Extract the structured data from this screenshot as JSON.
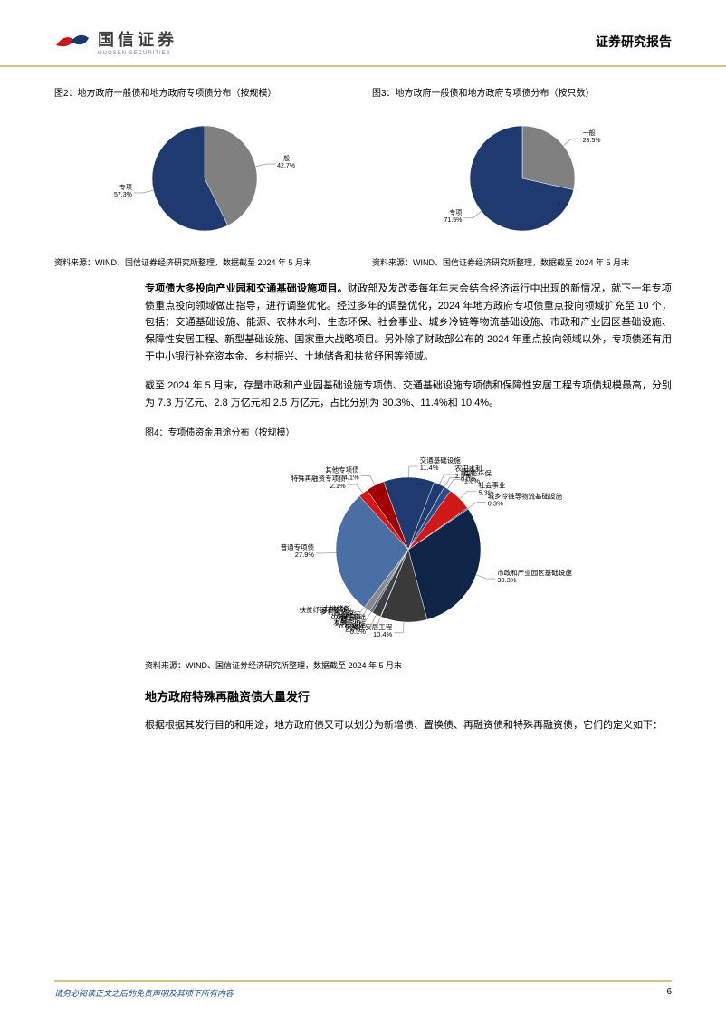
{
  "header": {
    "logo_cn": "国信证券",
    "logo_en": "GUOSEN SECURITIES",
    "report_type": "证券研究报告"
  },
  "chart2": {
    "type": "pie",
    "title": "图2：地方政府一般债和地方政府专项债分布（按规模）",
    "slices": [
      {
        "label": "一般",
        "value": 42.7,
        "color": "#808080",
        "display": "一般\n42.7%"
      },
      {
        "label": "专项",
        "value": 57.3,
        "color": "#1f3a6e",
        "display": "专项\n57.3%"
      }
    ],
    "background_color": "#ffffff",
    "radius": 58,
    "source": "资料来源：WIND、国信证券经济研究所整理，数据截至 2024 年 5 月末"
  },
  "chart3": {
    "type": "pie",
    "title": "图3：地方政府一般债和地方政府专项债分布（按只数）",
    "slices": [
      {
        "label": "一般",
        "value": 28.5,
        "color": "#808080",
        "display": "一般\n28.5%"
      },
      {
        "label": "专项",
        "value": 71.5,
        "color": "#1f3a6e",
        "display": "专项\n71.5%"
      }
    ],
    "background_color": "#ffffff",
    "radius": 58,
    "source": "资料来源：WIND、国信证券经济研究所整理，数据截至 2024 年 5 月末"
  },
  "paragraph1": "专项债大多投向产业园和交通基础设施项目。财政部及发改委每年年末会结合经济运行中出现的新情况，就下一年专项债重点投向领域做出指导，进行调整优化。经过多年的调整优化，2024 年地方政府专项债重点投向领域扩充至 10 个，包括：交通基础设施、能源、农林水利、生态环保、社会事业、城乡冷链等物流基础设施、市政和产业园区基础设施、保障性安居工程、新型基础设施、国家重大战略项目。另外除了财政部公布的 2024 年重点投向领域以外，专项债还有用于中小银行补充资本金、乡村振兴、土地储备和扶贫纾困等领域。",
  "paragraph1_bold_prefix": "专项债大多投向产业园和交通基础设施项目。",
  "paragraph2": "截至 2024 年 5 月末，存量市政和产业园基础设施专项债、交通基础设施专项债和保障性安居工程专项债规模最高，分别为 7.3 万亿元、2.8 万亿元和 2.5 万亿元，占比分别为 30.3%、11.4%和 10.4%。",
  "chart4": {
    "type": "pie",
    "title": "图4：专项债资金用途分布（按规模）",
    "radius": 80,
    "background_color": "#ffffff",
    "slices": [
      {
        "label": "交通基础设施",
        "value": 11.4,
        "color": "#1f3a6e",
        "display": "交通基础设施\n11.4%"
      },
      {
        "label": "农田水利",
        "value": 2.5,
        "color": "#1f3a6e",
        "display": "农田水利\n2.5%"
      },
      {
        "label": "能源",
        "value": 0.0,
        "color": "#0b1c3d",
        "display": "能源\n0.0%"
      },
      {
        "label": "生态环保",
        "value": 1.6,
        "color": "#2a4a8a",
        "display": "生态环保\n1.6%"
      },
      {
        "label": "社会事业",
        "value": 5.3,
        "color": "#d01818",
        "display": "社会事业\n5.3%"
      },
      {
        "label": "城乡冷链等物流基础设施",
        "value": 0.3,
        "color": "#35598f",
        "display": "城乡冷链等物流基础设施\n0.3%"
      },
      {
        "label": "市政和产业园区基础设施",
        "value": 30.3,
        "color": "#0f2548",
        "display": "市政和产业园区基础设施\n30.3%"
      },
      {
        "label": "保障性安居工程",
        "value": 10.4,
        "color": "#3a3a3a",
        "display": "保障性安居工程\n10.4%"
      },
      {
        "label": "新型基础设施",
        "value": 0.1,
        "color": "#606060",
        "display": "新型基础\n设施\n0.1%"
      },
      {
        "label": "中小银行发展专项债",
        "value": 2.0,
        "color": "#404040",
        "display": "中小银行\n发展专项\n2.0%"
      },
      {
        "label": "乡村振兴专项债",
        "value": 0.6,
        "color": "#5a6a8a",
        "display": "乡村振兴专\n项债\n0.6%"
      },
      {
        "label": "土地储备债",
        "value": 1.5,
        "color": "#888888",
        "display": "土地储备\n债\n1.5%"
      },
      {
        "label": "扶贫纾困专项债",
        "value": 0.0,
        "color": "#7aa0d0",
        "display": "扶贫纾困专项债\n0.0%"
      },
      {
        "label": "普通专项债",
        "value": 27.9,
        "color": "#4a6fa5",
        "display": "普通专项债\n27.9%"
      },
      {
        "label": "特殊再融资专项债",
        "value": 2.1,
        "color": "#d01818",
        "display": "特殊再融资专项债\n2.1%"
      },
      {
        "label": "其他专项债",
        "value": 4.1,
        "color": "#a00000",
        "display": "其他专项债\n4.1%"
      }
    ],
    "source": "资料来源：WIND、国信证券经济研究所整理，数据截至 2024 年 5 月末"
  },
  "section_title": "地方政府特殊再融资债大量发行",
  "paragraph3": "根据根据其发行目的和用途，地方政府债又可以划分为新增债、置换债、再融资债和特殊再融资债，它们的定义如下：",
  "footer": {
    "disclaimer": "请务必阅读正文之后的免责声明及其项下所有内容",
    "page": "6"
  }
}
